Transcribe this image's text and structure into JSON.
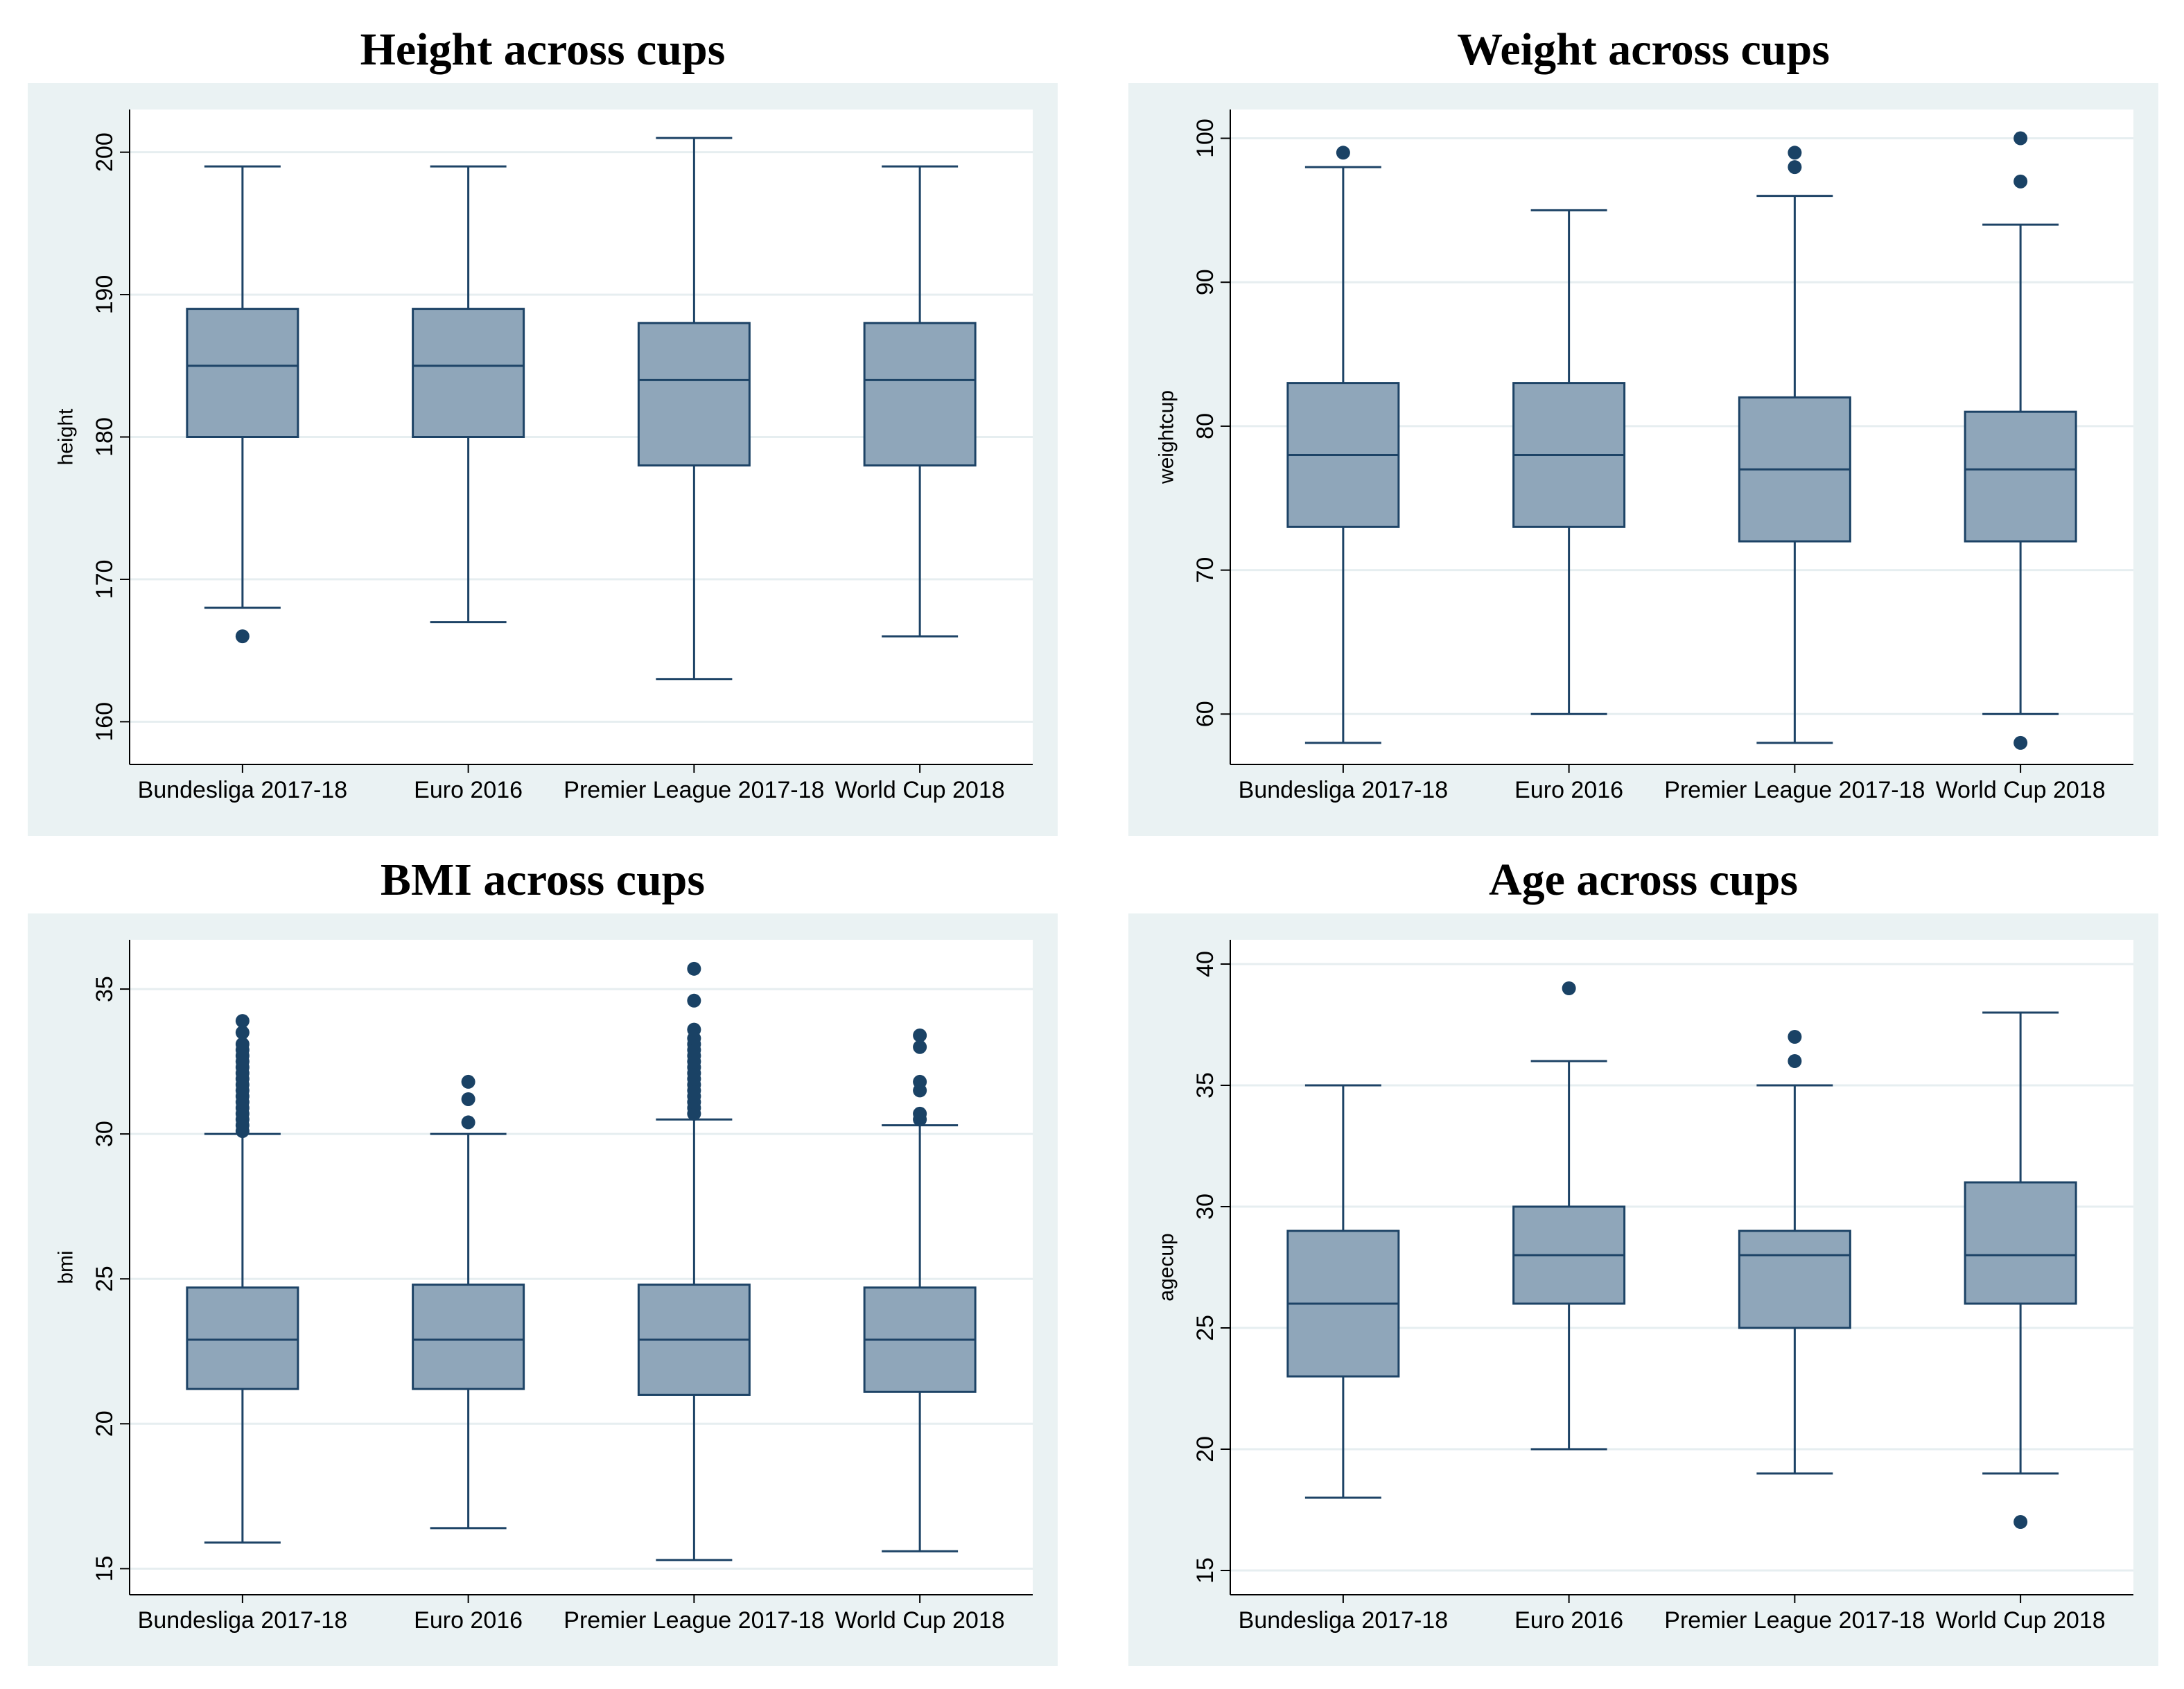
{
  "colors": {
    "outer_background": "#eaf2f3",
    "plot_background": "#ffffff",
    "box_fill": "#8fa6ba",
    "box_stroke": "#1d4366",
    "marker": "#1a4265",
    "gridline": "#e6eef0",
    "text": "#000000"
  },
  "chart_data": [
    {
      "type": "box",
      "title": "Height across cups",
      "ylabel": "height",
      "xlabel": "",
      "ylim": [
        157,
        203
      ],
      "yticks": [
        160,
        170,
        180,
        190,
        200
      ],
      "grid": true,
      "categories": [
        "Bundesliga 2017-18",
        "Euro 2016",
        "Premier League 2017-18",
        "World Cup 2018"
      ],
      "boxes": [
        {
          "whisker_low": 168,
          "q1": 180,
          "median": 185,
          "q3": 189,
          "whisker_high": 199,
          "outliers": [
            166
          ]
        },
        {
          "whisker_low": 167,
          "q1": 180,
          "median": 185,
          "q3": 189,
          "whisker_high": 199,
          "outliers": []
        },
        {
          "whisker_low": 163,
          "q1": 178,
          "median": 184,
          "q3": 188,
          "whisker_high": 201,
          "outliers": []
        },
        {
          "whisker_low": 166,
          "q1": 178,
          "median": 184,
          "q3": 188,
          "whisker_high": 199,
          "outliers": []
        }
      ]
    },
    {
      "type": "box",
      "title": "Weight across cups",
      "ylabel": "weightcup",
      "xlabel": "",
      "ylim": [
        56.5,
        102
      ],
      "yticks": [
        60,
        70,
        80,
        90,
        100
      ],
      "grid": true,
      "categories": [
        "Bundesliga 2017-18",
        "Euro 2016",
        "Premier League 2017-18",
        "World Cup 2018"
      ],
      "boxes": [
        {
          "whisker_low": 58,
          "q1": 73,
          "median": 78,
          "q3": 83,
          "whisker_high": 98,
          "outliers": [
            99
          ]
        },
        {
          "whisker_low": 60,
          "q1": 73,
          "median": 78,
          "q3": 83,
          "whisker_high": 95,
          "outliers": []
        },
        {
          "whisker_low": 58,
          "q1": 72,
          "median": 77,
          "q3": 82,
          "whisker_high": 96,
          "outliers": [
            98,
            99
          ]
        },
        {
          "whisker_low": 60,
          "q1": 72,
          "median": 77,
          "q3": 81,
          "whisker_high": 94,
          "outliers": [
            58,
            97,
            100
          ]
        }
      ]
    },
    {
      "type": "box",
      "title": "BMI across cups",
      "ylabel": "bmi",
      "xlabel": "",
      "ylim": [
        14.1,
        36.7
      ],
      "yticks": [
        15,
        20,
        25,
        30,
        35
      ],
      "grid": true,
      "categories": [
        "Bundesliga 2017-18",
        "Euro 2016",
        "Premier League 2017-18",
        "World Cup 2018"
      ],
      "boxes": [
        {
          "whisker_low": 15.9,
          "q1": 21.2,
          "median": 22.9,
          "q3": 24.7,
          "whisker_high": 30,
          "outliers": [
            30.1,
            30.3,
            30.5,
            30.7,
            30.9,
            31.1,
            31.3,
            31.5,
            31.7,
            31.9,
            32.1,
            32.3,
            32.5,
            32.7,
            32.9,
            33.1,
            33.5,
            33.9
          ]
        },
        {
          "whisker_low": 16.4,
          "q1": 21.2,
          "median": 22.9,
          "q3": 24.8,
          "whisker_high": 30,
          "outliers": [
            30.4,
            31.2,
            31.8
          ]
        },
        {
          "whisker_low": 15.3,
          "q1": 21.0,
          "median": 22.9,
          "q3": 24.8,
          "whisker_high": 30.5,
          "outliers": [
            30.7,
            30.9,
            31.1,
            31.3,
            31.5,
            31.7,
            31.9,
            32.1,
            32.3,
            32.5,
            32.7,
            32.9,
            33.1,
            33.3,
            33.6,
            34.6,
            35.7
          ]
        },
        {
          "whisker_low": 15.6,
          "q1": 21.1,
          "median": 22.9,
          "q3": 24.7,
          "whisker_high": 30.3,
          "outliers": [
            30.5,
            30.7,
            31.5,
            31.8,
            33.0,
            33.4
          ]
        }
      ]
    },
    {
      "type": "box",
      "title": "Age across cups",
      "ylabel": "agecup",
      "xlabel": "",
      "ylim": [
        14,
        41
      ],
      "yticks": [
        15,
        20,
        25,
        30,
        35,
        40
      ],
      "grid": true,
      "categories": [
        "Bundesliga 2017-18",
        "Euro 2016",
        "Premier League 2017-18",
        "World Cup 2018"
      ],
      "boxes": [
        {
          "whisker_low": 18,
          "q1": 23,
          "median": 26,
          "q3": 29,
          "whisker_high": 35,
          "outliers": []
        },
        {
          "whisker_low": 20,
          "q1": 26,
          "median": 28,
          "q3": 30,
          "whisker_high": 36,
          "outliers": [
            39
          ]
        },
        {
          "whisker_low": 19,
          "q1": 25,
          "median": 28,
          "q3": 29,
          "whisker_high": 35,
          "outliers": [
            36,
            37
          ]
        },
        {
          "whisker_low": 19,
          "q1": 26,
          "median": 28,
          "q3": 31,
          "whisker_high": 38,
          "outliers": [
            17
          ]
        }
      ]
    }
  ]
}
